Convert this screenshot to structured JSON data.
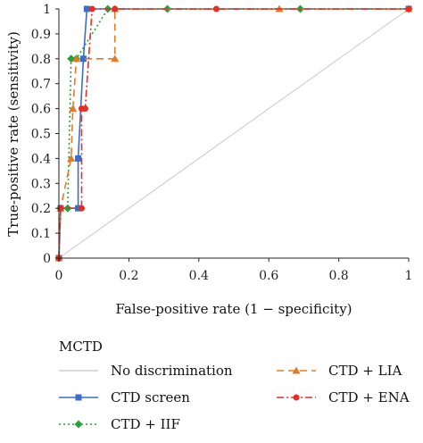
{
  "chart_data": {
    "type": "line",
    "xlabel": "False-positive rate (1 − specificity)",
    "ylabel": "True-positive rate (sensitivity)",
    "xlim": [
      0,
      1
    ],
    "ylim": [
      0,
      1
    ],
    "x_ticks": [
      "0",
      "0.2",
      "0.4",
      "0.6",
      "0.8",
      "1"
    ],
    "y_ticks": [
      "0",
      "0.1",
      "0.2",
      "0.3",
      "0.4",
      "0.5",
      "0.6",
      "0.7",
      "0.8",
      "0.9",
      "1"
    ],
    "grid": false,
    "legend_title": "MCTD",
    "legend_position": "bottom",
    "series": [
      {
        "name": "No discrimination",
        "color": "#c8c8c8",
        "dash": "solid",
        "marker": "none",
        "x": [
          0,
          1
        ],
        "y": [
          0,
          1
        ]
      },
      {
        "name": "CTD screen",
        "color": "#3a6fc4",
        "dash": "solid",
        "marker": "square",
        "x": [
          0,
          0.005,
          0.055,
          0.055,
          0.07,
          0.08,
          1.0
        ],
        "y": [
          0,
          0.2,
          0.2,
          0.4,
          0.8,
          1.0,
          1.0
        ]
      },
      {
        "name": "CTD + IIF",
        "color": "#2e9c3e",
        "dash": "dotted",
        "marker": "diamond",
        "x": [
          0,
          0.005,
          0.025,
          0.035,
          0.05,
          0.14,
          0.31,
          0.69,
          1.0
        ],
        "y": [
          0,
          0.2,
          0.2,
          0.8,
          0.8,
          1.0,
          1.0,
          1.0,
          1.0
        ]
      },
      {
        "name": "CTD + LIA",
        "color": "#e07b2a",
        "dash": "dashed",
        "marker": "triangle",
        "x": [
          0,
          0.005,
          0.035,
          0.04,
          0.05,
          0.16,
          0.16,
          0.63,
          1.0
        ],
        "y": [
          0,
          0.2,
          0.4,
          0.6,
          0.8,
          0.8,
          1.0,
          1.0,
          1.0
        ]
      },
      {
        "name": "CTD + ENA",
        "color": "#e0302a",
        "dash": "dashdot",
        "marker": "circle",
        "x": [
          0,
          0.005,
          0.065,
          0.065,
          0.075,
          0.095,
          0.16,
          0.45,
          1.0
        ],
        "y": [
          0,
          0.2,
          0.2,
          0.6,
          0.6,
          1.0,
          1.0,
          1.0,
          1.0
        ]
      }
    ]
  }
}
